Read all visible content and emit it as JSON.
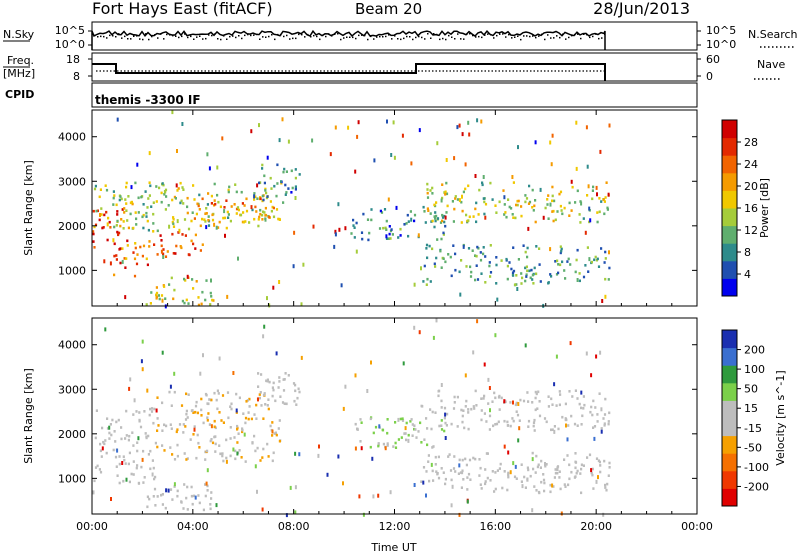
{
  "header": {
    "station": "Fort Hays East (fitACF)",
    "beam": "Beam 20",
    "date": "28/Jun/2013"
  },
  "strips": {
    "sky_label": "N.Sky",
    "sky_ticks": [
      "10^5",
      "10^0"
    ],
    "search_label": "N.Search",
    "freq_label_1": "Freq.",
    "freq_label_2": "[MHz]",
    "freq_ticks": [
      "18",
      "8"
    ],
    "nave_label": "Nave",
    "nave_ticks": [
      "60",
      "0"
    ],
    "cpid_label": "CPID",
    "cpid_value": "themis -3300 IF"
  },
  "colors": {
    "power_scale": [
      "#0000ee",
      "#1f4fb0",
      "#2e8b8b",
      "#5fae6e",
      "#a5cc3a",
      "#f0c800",
      "#f59b00",
      "#f26400",
      "#e32900",
      "#d00000"
    ],
    "velocity_scale": [
      "#e00000",
      "#f03800",
      "#f57000",
      "#f5a000",
      "#bdbdbd",
      "#bdbdbd",
      "#7bd04a",
      "#2f9a3d",
      "#3a6fd0",
      "#1a2fb0"
    ],
    "ground_scatter": "#bdbdbd"
  },
  "chart_data": [
    {
      "type": "heatmap",
      "title": "Power",
      "xlabel": "",
      "ylabel": "Slant Range [km]",
      "xlim_hours_ut": [
        0,
        24
      ],
      "ylim_km": [
        200,
        4600
      ],
      "yticks": [
        "4000",
        "3000",
        "2000",
        "1000"
      ],
      "colorbar": {
        "label": "Power [dB]",
        "ticks": [
          "28",
          "24",
          "20",
          "16",
          "12",
          "8",
          "4"
        ],
        "range": [
          0,
          30
        ]
      },
      "data_end_hour_ut": 20.5,
      "echo_regions": [
        {
          "t0": 0.0,
          "t1": 1.2,
          "r0": 1500,
          "r1": 2400,
          "value": 27
        },
        {
          "t0": 0.8,
          "t1": 2.5,
          "r0": 900,
          "r1": 1700,
          "value": 22
        },
        {
          "t0": 0.0,
          "t1": 7.5,
          "r0": 1900,
          "r1": 3000,
          "value": 14
        },
        {
          "t0": 2.5,
          "t1": 4.5,
          "r0": 1300,
          "r1": 1900,
          "value": 24
        },
        {
          "t0": 2.0,
          "t1": 4.8,
          "r0": 250,
          "r1": 900,
          "value": 15
        },
        {
          "t0": 4.0,
          "t1": 7.4,
          "r0": 2100,
          "r1": 2700,
          "value": 20
        },
        {
          "t0": 6.5,
          "t1": 8.2,
          "r0": 2500,
          "r1": 3400,
          "value": 8
        },
        {
          "t0": 10.2,
          "t1": 14.0,
          "r0": 1700,
          "r1": 2400,
          "value": 7
        },
        {
          "t0": 13.0,
          "t1": 20.5,
          "r0": 700,
          "r1": 1600,
          "value": 9
        },
        {
          "t0": 13.0,
          "t1": 20.5,
          "r0": 2100,
          "r1": 3000,
          "value": 14
        }
      ]
    },
    {
      "type": "heatmap",
      "title": "Velocity",
      "xlabel": "Time UT",
      "ylabel": "Slant Range [km]",
      "xlim_hours_ut": [
        0,
        24
      ],
      "ylim_km": [
        200,
        4600
      ],
      "xticks": [
        "00:00",
        "04:00",
        "08:00",
        "12:00",
        "16:00",
        "20:00",
        "00:00"
      ],
      "yticks": [
        "4000",
        "3000",
        "2000",
        "1000"
      ],
      "colorbar": {
        "label": "Velocity [m s^-1]",
        "ticks": [
          "200",
          "100",
          "50",
          "15",
          "-15",
          "-50",
          "-100",
          "-200"
        ],
        "range": [
          -250,
          250
        ]
      },
      "data_end_hour_ut": 20.5,
      "echo_regions": [
        {
          "t0": 0.0,
          "t1": 2.5,
          "r0": 900,
          "r1": 2600,
          "value": 0
        },
        {
          "t0": 2.5,
          "t1": 7.5,
          "r0": 1400,
          "r1": 3000,
          "value": -40
        },
        {
          "t0": 6.5,
          "t1": 8.2,
          "r0": 2500,
          "r1": 3400,
          "value": 0
        },
        {
          "t0": 2.0,
          "t1": 4.8,
          "r0": 250,
          "r1": 900,
          "value": 0
        },
        {
          "t0": 10.2,
          "t1": 14.0,
          "r0": 1700,
          "r1": 2400,
          "value": 40
        },
        {
          "t0": 13.0,
          "t1": 20.5,
          "r0": 700,
          "r1": 1600,
          "value": 0
        },
        {
          "t0": 13.0,
          "t1": 20.5,
          "r0": 2100,
          "r1": 3000,
          "value": 0
        }
      ]
    }
  ]
}
